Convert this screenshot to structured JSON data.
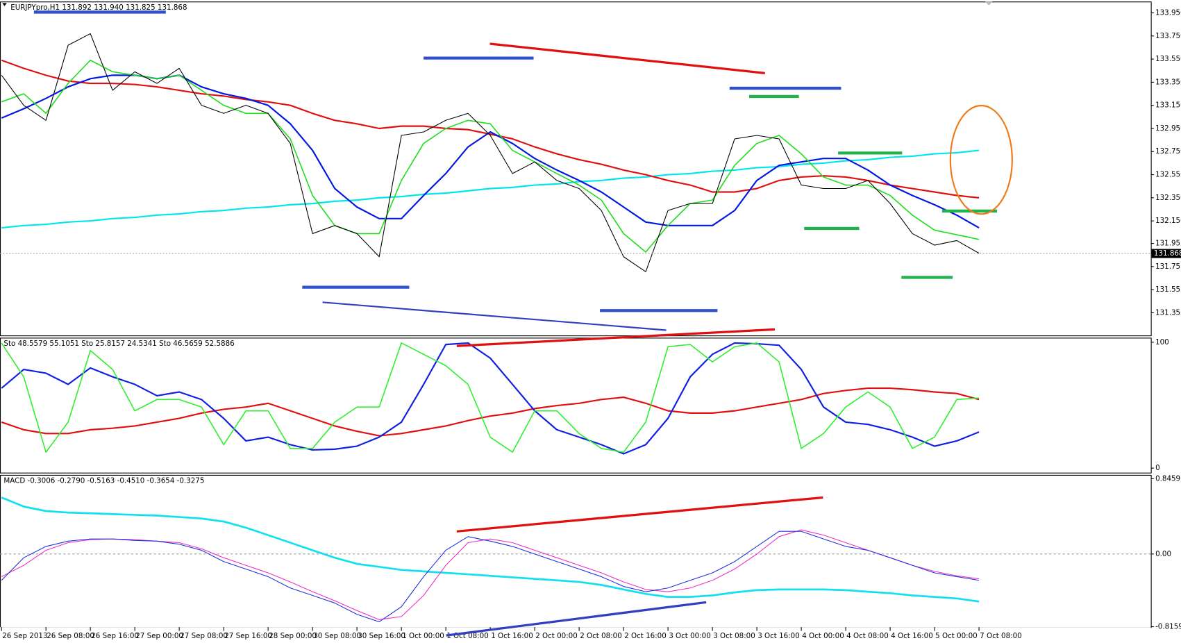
{
  "chart_data": [
    {
      "type": "line",
      "title": "EURJPYpro,H1  131.892 131.940 131.825 131.868",
      "ylim": [
        131.159,
        134.048
      ],
      "yticks": [
        {
          "value": 133.95,
          "label": "133.950"
        },
        {
          "value": 133.75,
          "label": "133.750"
        },
        {
          "value": 133.55,
          "label": "133.550"
        },
        {
          "value": 133.35,
          "label": "133.350"
        },
        {
          "value": 133.15,
          "label": "133.150"
        },
        {
          "value": 132.95,
          "label": "132.950"
        },
        {
          "value": 132.75,
          "label": "132.750"
        },
        {
          "value": 132.55,
          "label": "132.550"
        },
        {
          "value": 132.35,
          "label": "132.350"
        },
        {
          "value": 132.15,
          "label": "132.150"
        },
        131.955,
        131.755,
        131.555,
        131.355
      ],
      "last_price": 131.868,
      "series": [
        {
          "color": "#00e5ee",
          "values": [
            132.09,
            132.11,
            132.12,
            132.14,
            132.15,
            132.17,
            132.18,
            132.2,
            132.21,
            132.23,
            132.24,
            132.26,
            132.27,
            132.29,
            132.3,
            132.32,
            132.33,
            132.35,
            132.36,
            132.38,
            132.39,
            132.41,
            132.43,
            132.44,
            132.46,
            132.47,
            132.49,
            132.5,
            132.52,
            132.53,
            132.55,
            132.56,
            132.58,
            132.59,
            132.61,
            132.62,
            132.64,
            132.65,
            132.67,
            132.68,
            132.7,
            132.71,
            132.73,
            132.74,
            132.76
          ]
        },
        {
          "color": "#e01010",
          "values": [
            133.54,
            133.47,
            133.41,
            133.36,
            133.34,
            133.34,
            133.33,
            133.31,
            133.28,
            133.25,
            133.23,
            133.2,
            133.18,
            133.15,
            133.08,
            133.02,
            132.99,
            132.95,
            132.97,
            132.97,
            132.95,
            132.94,
            132.9,
            132.86,
            132.79,
            132.73,
            132.68,
            132.64,
            132.59,
            132.55,
            132.5,
            132.46,
            132.4,
            132.4,
            132.43,
            132.5,
            132.53,
            132.54,
            132.53,
            132.5,
            132.46,
            132.43,
            132.4,
            132.37,
            132.35
          ]
        },
        {
          "color": "#0018e0",
          "values": [
            133.04,
            133.12,
            133.21,
            133.31,
            133.38,
            133.41,
            133.41,
            133.38,
            133.41,
            133.31,
            133.25,
            133.21,
            133.15,
            132.99,
            132.76,
            132.43,
            132.27,
            132.17,
            132.17,
            132.37,
            132.56,
            132.79,
            132.92,
            132.82,
            132.69,
            132.59,
            132.5,
            132.4,
            132.27,
            132.14,
            132.11,
            132.11,
            132.11,
            132.24,
            132.5,
            132.63,
            132.66,
            132.69,
            132.69,
            132.59,
            132.46,
            132.37,
            132.29,
            132.2,
            132.09
          ]
        },
        {
          "color": "#22dd22",
          "values": [
            133.18,
            133.25,
            133.08,
            133.34,
            133.54,
            133.44,
            133.41,
            133.38,
            133.41,
            133.28,
            133.15,
            133.08,
            133.08,
            132.86,
            132.37,
            132.11,
            132.04,
            132.04,
            132.5,
            132.82,
            132.95,
            133.02,
            132.99,
            132.76,
            132.66,
            132.56,
            132.46,
            132.33,
            132.04,
            131.88,
            132.11,
            132.3,
            132.33,
            132.63,
            132.82,
            132.89,
            132.73,
            132.53,
            132.46,
            132.46,
            132.37,
            132.2,
            132.07,
            132.03,
            131.99
          ]
        },
        {
          "color": "#000000",
          "values": [
            133.41,
            133.15,
            133.02,
            133.67,
            133.77,
            133.28,
            133.44,
            133.34,
            133.47,
            133.15,
            133.08,
            133.15,
            133.08,
            132.82,
            132.04,
            132.11,
            132.04,
            131.84,
            132.89,
            132.92,
            133.02,
            133.08,
            132.89,
            132.56,
            132.66,
            132.5,
            132.43,
            132.24,
            131.84,
            131.71,
            132.24,
            132.3,
            132.3,
            132.86,
            132.89,
            132.86,
            132.46,
            132.43,
            132.43,
            132.5,
            132.3,
            132.04,
            131.94,
            131.98,
            131.87
          ]
        }
      ]
    },
    {
      "type": "line",
      "title": "Sto 48.5579 55.1051  Sto 25.8157 24.5341  Sto 46.5659 52.5886",
      "ylim": [
        -3.6,
        103.6
      ],
      "yticks": [
        100,
        0
      ],
      "series": [
        {
          "color": "#e01010",
          "values": [
            36.5,
            30.5,
            27.5,
            27.5,
            30.5,
            31.7,
            33.5,
            36.5,
            39.5,
            43.7,
            46.7,
            48.5,
            51.5,
            45.5,
            39.5,
            33.5,
            29.3,
            25.7,
            27.5,
            30.5,
            33.5,
            37.7,
            41.3,
            43.7,
            47.3,
            49.7,
            51.5,
            54.5,
            56.3,
            51.5,
            45.5,
            43.7,
            43.7,
            45.5,
            48.5,
            51.5,
            54.5,
            59.3,
            61.7,
            63.5,
            63.5,
            62.3,
            60.5,
            59.3,
            54.5
          ]
        },
        {
          "color": "#1020e0",
          "values": [
            63.5,
            78.4,
            75.4,
            66.5,
            79.6,
            72.5,
            66.5,
            57.5,
            60.5,
            54.5,
            39.5,
            21.6,
            24.6,
            18.6,
            14.4,
            15.0,
            17.4,
            24.6,
            36.5,
            66.5,
            98.2,
            99.4,
            87.4,
            66.5,
            45.5,
            30.5,
            24.6,
            18.6,
            11.4,
            18.6,
            39.5,
            72.5,
            90.4,
            99.4,
            98.8,
            97.6,
            78.4,
            48.5,
            36.5,
            34.7,
            30.5,
            24.6,
            17.4,
            21.6,
            28.7
          ]
        },
        {
          "color": "#33ee33",
          "values": [
            99.4,
            72.5,
            12.6,
            36.5,
            93.4,
            78.4,
            45.5,
            54.5,
            54.5,
            48.5,
            18.6,
            45.5,
            45.5,
            15.6,
            15.6,
            36.5,
            48.5,
            48.5,
            99.4,
            90.4,
            81.4,
            66.5,
            24.6,
            12.6,
            45.5,
            45.5,
            27.5,
            15.6,
            12.6,
            36.5,
            96.4,
            98.2,
            84.4,
            96.4,
            99.4,
            84.4,
            15.6,
            27.5,
            48.5,
            60.5,
            48.5,
            15.6,
            24.6,
            54.5,
            55.7
          ]
        }
      ]
    },
    {
      "type": "line",
      "title": "MACD -0.3006 -0.2790 -0.5163 -0.4510 -0.3654 -0.3275",
      "ylim": [
        -0.821,
        0.888
      ],
      "yticks": [
        0.8459,
        {
          "value": 0,
          "label": "0.00"
        },
        -0.8159
      ],
      "categories": [
        "26 Sep 2013",
        null,
        "26 Sep 08:00",
        null,
        "26 Sep 16:00",
        null,
        "27 Sep 00:00",
        null,
        "27 Sep 08:00",
        null,
        "27 Sep 16:00",
        null,
        "28 Sep 00:00",
        null,
        "30 Sep 08:00",
        null,
        "30 Sep 16:00",
        null,
        "1 Oct 00:00",
        null,
        "1 Oct 08:00",
        null,
        "1 Oct 16:00",
        null,
        "2 Oct 00:00",
        null,
        "2 Oct 08:00",
        null,
        "2 Oct 16:00",
        null,
        "3 Oct 00:00",
        null,
        "3 Oct 08:00",
        null,
        "3 Oct 16:00",
        null,
        "4 Oct 00:00",
        null,
        "4 Oct 08:00",
        null,
        "4 Oct 16:00",
        null,
        "5 Oct 00:00",
        null,
        "7 Oct 08:00"
      ],
      "series": [
        {
          "color": "#10e0f0",
          "values": [
            0.635,
            0.533,
            0.482,
            0.465,
            0.457,
            0.448,
            0.44,
            0.431,
            0.415,
            0.398,
            0.364,
            0.296,
            0.212,
            0.127,
            0.042,
            -0.042,
            -0.11,
            -0.144,
            -0.178,
            -0.195,
            -0.212,
            -0.228,
            -0.245,
            -0.262,
            -0.279,
            -0.296,
            -0.313,
            -0.347,
            -0.398,
            -0.448,
            -0.482,
            -0.482,
            -0.465,
            -0.431,
            -0.406,
            -0.398,
            -0.398,
            -0.398,
            -0.406,
            -0.423,
            -0.44,
            -0.465,
            -0.482,
            -0.499,
            -0.533
          ]
        },
        {
          "color": "#ee30c0",
          "values": [
            -0.254,
            -0.127,
            0.042,
            0.127,
            0.161,
            0.169,
            0.161,
            0.144,
            0.127,
            0.059,
            -0.042,
            -0.127,
            -0.212,
            -0.313,
            -0.423,
            -0.525,
            -0.635,
            -0.736,
            -0.702,
            -0.465,
            -0.127,
            0.127,
            0.169,
            0.127,
            0.042,
            -0.042,
            -0.127,
            -0.212,
            -0.313,
            -0.398,
            -0.423,
            -0.381,
            -0.296,
            -0.169,
            0,
            0.195,
            0.271,
            0.212,
            0.127,
            0.042,
            -0.042,
            -0.127,
            -0.195,
            -0.245,
            -0.279
          ]
        },
        {
          "color": "#2030e0",
          "values": [
            -0.296,
            -0.042,
            0.085,
            0.144,
            0.169,
            0.169,
            0.152,
            0.144,
            0.11,
            0.042,
            -0.085,
            -0.169,
            -0.254,
            -0.381,
            -0.465,
            -0.55,
            -0.677,
            -0.761,
            -0.592,
            -0.254,
            0.042,
            0.195,
            0.144,
            0.085,
            0,
            -0.085,
            -0.169,
            -0.254,
            -0.364,
            -0.423,
            -0.381,
            -0.296,
            -0.212,
            -0.085,
            0.085,
            0.254,
            0.254,
            0.169,
            0.085,
            0.042,
            -0.042,
            -0.127,
            -0.212,
            -0.254,
            -0.296
          ]
        }
      ]
    }
  ]
}
